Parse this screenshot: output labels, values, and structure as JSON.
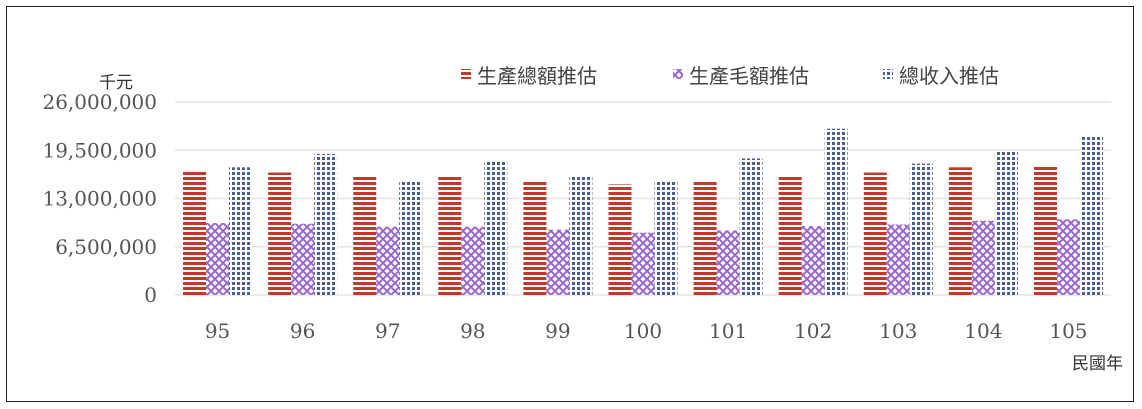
{
  "chart_data": {
    "type": "bar",
    "ylabel": "千元",
    "xlabel": "民國年",
    "categories": [
      "95",
      "96",
      "97",
      "98",
      "99",
      "100",
      "101",
      "102",
      "103",
      "104",
      "105"
    ],
    "ylim": [
      0,
      26000000
    ],
    "yticks": [
      0,
      6500000,
      13000000,
      19500000,
      26000000
    ],
    "ytick_labels": [
      "0",
      "6,500,000",
      "13,000,000",
      "19,500,000",
      "26,000,000"
    ],
    "grid": true,
    "legend_position": "top-right",
    "series": [
      {
        "name": "生產總額推估",
        "color": "#c0392b",
        "values": [
          16700000,
          16500000,
          16000000,
          15900000,
          15500000,
          14900000,
          15500000,
          16000000,
          16500000,
          17200000,
          17500000
        ]
      },
      {
        "name": "生產毛額推估",
        "color": "#9966cc",
        "values": [
          9700000,
          9600000,
          9200000,
          9200000,
          8800000,
          8400000,
          8700000,
          9300000,
          9500000,
          10000000,
          10200000
        ]
      },
      {
        "name": "總收入推估",
        "color": "#4a5f8f",
        "values": [
          17200000,
          19000000,
          15300000,
          18100000,
          16100000,
          15300000,
          18400000,
          22400000,
          17700000,
          19400000,
          21300000
        ]
      }
    ]
  }
}
